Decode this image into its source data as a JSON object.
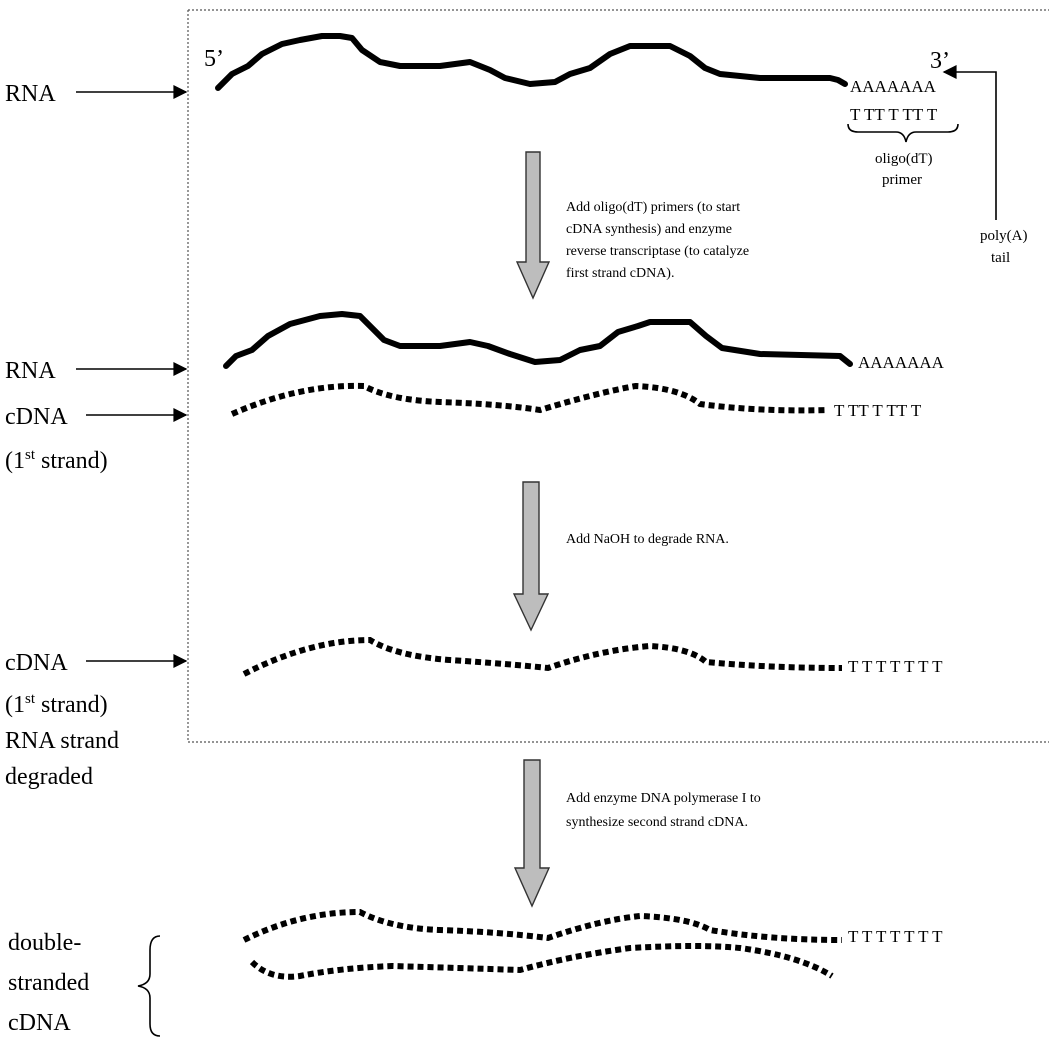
{
  "labels": {
    "rna_1": "RNA",
    "rna_2": "RNA",
    "cdna_1": "cDNA",
    "cdna_1_sub": "(1",
    "cdna_1_sup": "st",
    "cdna_1_end": " strand)",
    "cdna_2": "cDNA",
    "cdna_2_sub": "(1",
    "cdna_2_sup": "st",
    "cdna_2_end": " strand)",
    "rna_degraded_1": "RNA strand",
    "rna_degraded_2": "degraded",
    "ds_1": "double-",
    "ds_2": "stranded",
    "ds_3": "cDNA"
  },
  "ends": {
    "five_prime": "5’",
    "three_prime": "3’"
  },
  "sequences": {
    "polyA_top": "AAAAAAA",
    "oligo_dT_top": "T TT T TT T",
    "polyA_mid": "AAAAAAA",
    "dT_mid": "T TT T TT T",
    "dT_single": "T T T T T T T",
    "dT_double": "T T T T T T T"
  },
  "annotations": {
    "oligo_1": "oligo(dT)",
    "oligo_2": "primer",
    "poly_1": "poly(A)",
    "poly_2": "tail"
  },
  "steps": [
    {
      "lines": [
        "Add oligo(dT) primers (to start",
        "cDNA synthesis) and enzyme",
        "reverse transcriptase (to catalyze",
        "first strand cDNA)."
      ]
    },
    {
      "lines": [
        "Add NaOH to degrade RNA."
      ]
    },
    {
      "lines": [
        "Add enzyme DNA polymerase I to",
        "synthesize second strand cDNA."
      ]
    }
  ]
}
